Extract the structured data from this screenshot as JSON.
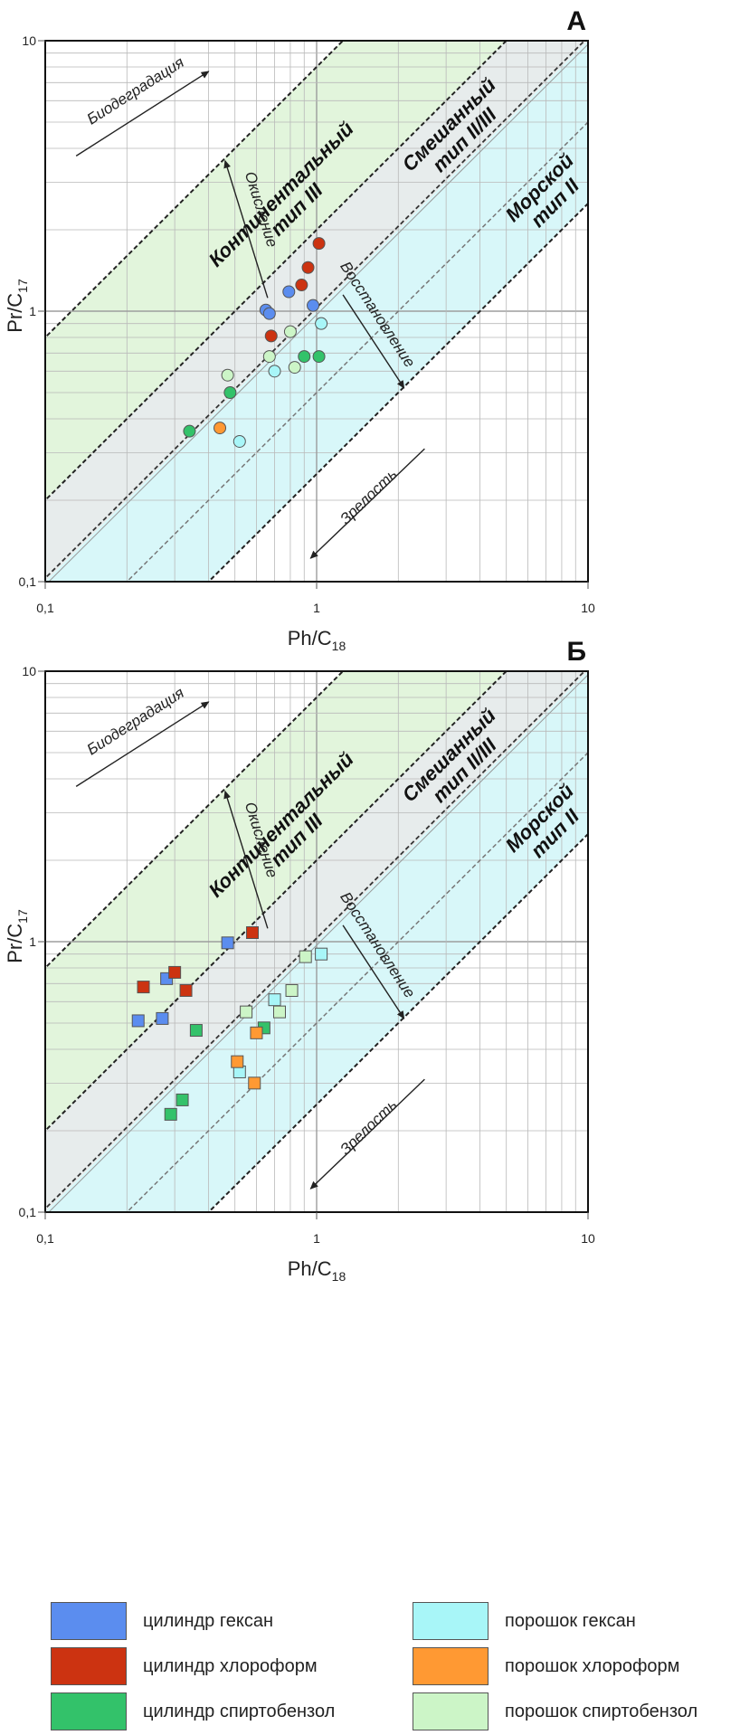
{
  "colors": {
    "cyl_hex": "#5b8def",
    "cyl_chl": "#cc3311",
    "cyl_spb": "#33c26a",
    "pow_hex": "#a8f6f8",
    "pow_chl": "#ff9933",
    "pow_spb": "#ccf5c7",
    "zone_cont": "#e2f5dc",
    "zone_mixed": "#e7ecec",
    "zone_marine": "#d8f7f9"
  },
  "chart_data": [
    {
      "type": "scatter",
      "panel_label": "А",
      "xlabel": "Ph/C",
      "xlabel_sub": "18",
      "ylabel": "Pr/C",
      "ylabel_sub": "17",
      "x_scale": "log",
      "y_scale": "log",
      "xlim": [
        0.1,
        10
      ],
      "ylim": [
        0.1,
        10
      ],
      "grid": true,
      "x_ticks": [
        {
          "value": 0.1,
          "label": "0,1"
        },
        {
          "value": 1,
          "label": "1"
        },
        {
          "value": 10,
          "label": "10"
        }
      ],
      "y_ticks": [
        {
          "value": 0.1,
          "label": "0,1"
        },
        {
          "value": 1,
          "label": "1"
        },
        {
          "value": 10,
          "label": "10"
        }
      ],
      "zones": {
        "continental": [
          "Континентальный",
          "тип III"
        ],
        "mixed": [
          "Смешанный",
          "тип II/III"
        ],
        "marine": [
          "Морской",
          "тип II"
        ]
      },
      "arrows": {
        "biodegradation": "Биодеградация",
        "oxidation": "Окисление",
        "reduction": "Восстановление",
        "maturity": "Зрелость"
      },
      "marker": "circle",
      "series": [
        {
          "name": "цилиндр гексан",
          "key": "cyl_hex",
          "x": [
            0.65,
            0.67,
            0.79,
            0.97
          ],
          "y": [
            1.01,
            0.98,
            1.18,
            1.05
          ]
        },
        {
          "name": "цилиндр хлороформ",
          "key": "cyl_chl",
          "x": [
            0.68,
            0.88,
            0.93,
            1.02
          ],
          "y": [
            0.81,
            1.25,
            1.45,
            1.78
          ]
        },
        {
          "name": "цилиндр спиртобензол",
          "key": "cyl_spb",
          "x": [
            0.34,
            0.48,
            0.9,
            1.02
          ],
          "y": [
            0.36,
            0.5,
            0.68,
            0.68
          ]
        },
        {
          "name": "порошок гексан",
          "key": "pow_hex",
          "x": [
            0.52,
            0.7,
            1.04
          ],
          "y": [
            0.33,
            0.6,
            0.9
          ]
        },
        {
          "name": "порошок хлороформ",
          "key": "pow_chl",
          "x": [
            0.44
          ],
          "y": [
            0.37
          ]
        },
        {
          "name": "порошок спиртобензол",
          "key": "pow_spb",
          "x": [
            0.47,
            0.67,
            0.8,
            0.83
          ],
          "y": [
            0.58,
            0.68,
            0.84,
            0.62
          ]
        }
      ]
    },
    {
      "type": "scatter",
      "panel_label": "Б",
      "xlabel": "Ph/C",
      "xlabel_sub": "18",
      "ylabel": "Pr/C",
      "ylabel_sub": "17",
      "x_scale": "log",
      "y_scale": "log",
      "xlim": [
        0.1,
        10
      ],
      "ylim": [
        0.1,
        10
      ],
      "grid": true,
      "x_ticks": [
        {
          "value": 0.1,
          "label": "0,1"
        },
        {
          "value": 1,
          "label": "1"
        },
        {
          "value": 10,
          "label": "10"
        }
      ],
      "y_ticks": [
        {
          "value": 0.1,
          "label": "0,1"
        },
        {
          "value": 1,
          "label": "1"
        },
        {
          "value": 10,
          "label": "10"
        }
      ],
      "zones": {
        "continental": [
          "Континентальный",
          "тип III"
        ],
        "mixed": [
          "Смешанный",
          "тип II/III"
        ],
        "marine": [
          "Морской",
          "тип II"
        ]
      },
      "arrows": {
        "biodegradation": "Биодеградация",
        "oxidation": "Окисление",
        "reduction": "Восстановление",
        "maturity": "Зрелость"
      },
      "marker": "square",
      "series": [
        {
          "name": "цилиндр гексан",
          "key": "cyl_hex",
          "x": [
            0.22,
            0.27,
            0.28,
            0.47
          ],
          "y": [
            0.51,
            0.52,
            0.73,
            0.99
          ]
        },
        {
          "name": "цилиндр хлороформ",
          "key": "cyl_chl",
          "x": [
            0.23,
            0.3,
            0.33,
            0.58
          ],
          "y": [
            0.68,
            0.77,
            0.66,
            1.08
          ]
        },
        {
          "name": "цилиндр спиртобензол",
          "key": "cyl_spb",
          "x": [
            0.29,
            0.32,
            0.36,
            0.64
          ],
          "y": [
            0.23,
            0.26,
            0.47,
            0.48
          ]
        },
        {
          "name": "порошок гексан",
          "key": "pow_hex",
          "x": [
            0.52,
            0.7,
            1.04
          ],
          "y": [
            0.33,
            0.61,
            0.9
          ]
        },
        {
          "name": "порошок хлороформ",
          "key": "pow_chl",
          "x": [
            0.51,
            0.59,
            0.6
          ],
          "y": [
            0.36,
            0.3,
            0.46
          ]
        },
        {
          "name": "порошок спиртобензол",
          "key": "pow_spb",
          "x": [
            0.55,
            0.73,
            0.81,
            0.91
          ],
          "y": [
            0.55,
            0.55,
            0.66,
            0.88
          ]
        }
      ]
    }
  ],
  "legend": [
    {
      "label": "цилиндр гексан",
      "key": "cyl_hex"
    },
    {
      "label": "порошок гексан",
      "key": "pow_hex"
    },
    {
      "label": "цилиндр хлороформ",
      "key": "cyl_chl"
    },
    {
      "label": "порошок хлороформ",
      "key": "pow_chl"
    },
    {
      "label": "цилиндр спиртобензол",
      "key": "cyl_spb"
    },
    {
      "label": "порошок спиртобензол",
      "key": "pow_spb"
    }
  ]
}
